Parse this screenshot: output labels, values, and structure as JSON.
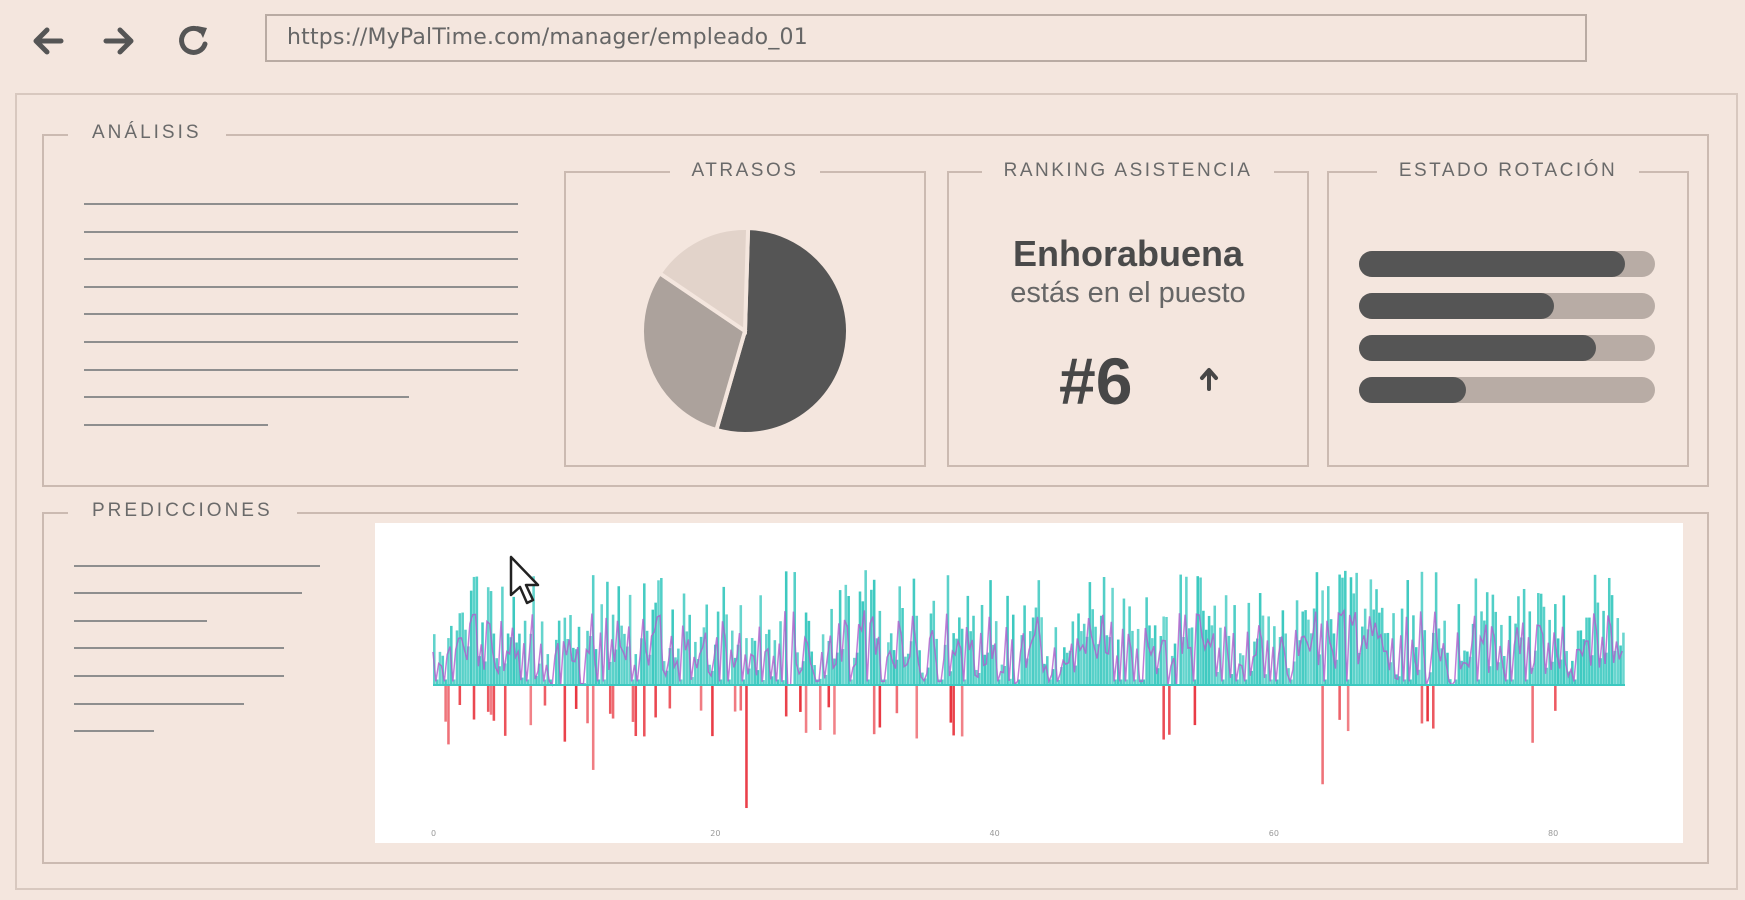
{
  "browser": {
    "url": "https://MyPalTime.com/manager/empleado_01",
    "back_icon": "arrow-left-icon",
    "forward_icon": "arrow-right-icon",
    "reload_icon": "reload-icon"
  },
  "analysis": {
    "title": "ANÁLISIS",
    "cards": {
      "delays": {
        "title": "ATRASOS"
      },
      "ranking": {
        "title": "RANKING ASISTENCIA",
        "headline": "Enhorabuena",
        "subline": "estás en el puesto",
        "position": "#6",
        "trend_icon": "arrow-up-icon"
      },
      "rotation": {
        "title": "ESTADO ROTACIÓN",
        "levels": [
          0.9,
          0.66,
          0.8,
          0.36
        ]
      }
    }
  },
  "predictions": {
    "title": "PREDICCIONES"
  },
  "chart_data": [
    {
      "type": "pie",
      "values": [
        54,
        30,
        16
      ],
      "colors": [
        "#555555",
        "#aca29c",
        "#e2d3ca"
      ]
    },
    {
      "type": "bar",
      "x_ticks": [
        "0",
        "20",
        "40",
        "60",
        "80"
      ],
      "grid": false,
      "colors": {
        "positive": "#3cc9c0",
        "negative": "#e8323c",
        "trend": "#b05ccc"
      }
    }
  ],
  "colors": {
    "background": "#f4e6de",
    "frame": "#cbbab1",
    "dark": "#555555"
  }
}
